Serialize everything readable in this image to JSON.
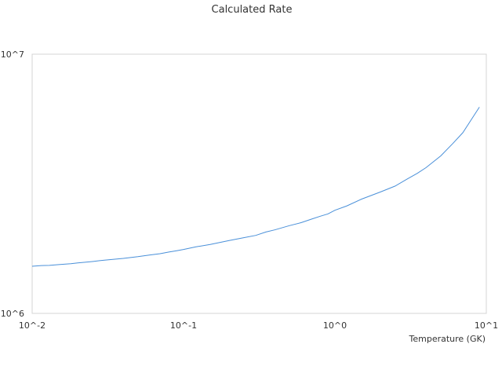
{
  "chart_data": {
    "type": "line",
    "title": "Calculated Rate",
    "xlabel": "Temperature (GK)",
    "ylabel": "",
    "x_scale": "log",
    "y_scale": "log",
    "xlim": [
      0.01,
      10
    ],
    "ylim": [
      1000000,
      10000000
    ],
    "x_ticks": [
      "10^-2",
      "10^-1",
      "10^0",
      "10^1"
    ],
    "y_ticks": [
      "10^6",
      "10^7"
    ],
    "grid": false,
    "legend": "none",
    "series": [
      {
        "color": "#4a90d9",
        "x": [
          0.01,
          0.0115,
          0.013,
          0.015,
          0.018,
          0.02,
          0.025,
          0.03,
          0.04,
          0.05,
          0.06,
          0.07,
          0.08,
          0.09,
          0.1,
          0.12,
          0.15,
          0.2,
          0.25,
          0.3,
          0.35,
          0.4,
          0.5,
          0.6,
          0.7,
          0.8,
          0.9,
          1.0,
          1.2,
          1.5,
          2.0,
          2.5,
          3.0,
          3.5,
          4.0,
          5.0,
          6.0,
          7.0,
          8.0,
          9.0
        ],
        "y": [
          1520000,
          1530000,
          1532000,
          1542000,
          1555000,
          1565000,
          1585000,
          1605000,
          1630000,
          1655000,
          1680000,
          1700000,
          1725000,
          1745000,
          1765000,
          1805000,
          1845000,
          1910000,
          1960000,
          2000000,
          2060000,
          2100000,
          2180000,
          2240000,
          2310000,
          2370000,
          2420000,
          2500000,
          2600000,
          2760000,
          2940000,
          3100000,
          3300000,
          3470000,
          3650000,
          4050000,
          4520000,
          4980000,
          5620000,
          6250000
        ]
      }
    ]
  }
}
